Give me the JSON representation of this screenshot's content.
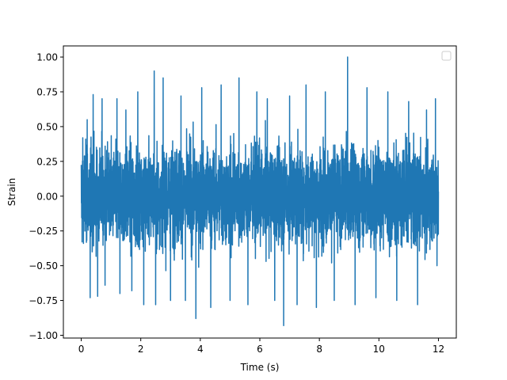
{
  "chart_data": {
    "type": "line",
    "title": "",
    "xlabel": "Time (s)",
    "ylabel": "Strain",
    "xlim": [
      -0.6,
      12.6
    ],
    "ylim": [
      -1.02,
      1.08
    ],
    "x_ticks": [
      0,
      2,
      4,
      6,
      8,
      10,
      12
    ],
    "x_tick_labels": [
      "0",
      "2",
      "4",
      "6",
      "8",
      "10",
      "12"
    ],
    "y_ticks": [
      -1.0,
      -0.75,
      -0.5,
      -0.25,
      0.0,
      0.25,
      0.5,
      0.75,
      1.0
    ],
    "y_tick_labels": [
      "−1.00",
      "−0.75",
      "−0.50",
      "−0.25",
      "0.00",
      "0.25",
      "0.50",
      "0.75",
      "1.00"
    ],
    "grid": false,
    "legend": {
      "placement": "top-right",
      "entries": []
    },
    "series": [
      {
        "color": "#1f77b4",
        "style": "dense noise signal, amplitude mostly within ±0.5",
        "x_range": [
          0,
          12
        ],
        "typical_range": [
          -0.55,
          0.55
        ],
        "max": {
          "x": 8.95,
          "y": 1.0
        },
        "min": {
          "x": 6.8,
          "y": -0.93
        },
        "peaks": [
          {
            "x": 0.05,
            "y": 0.42
          },
          {
            "x": 0.2,
            "y": 0.55
          },
          {
            "x": 0.3,
            "y": -0.73
          },
          {
            "x": 0.4,
            "y": 0.73
          },
          {
            "x": 0.55,
            "y": -0.72
          },
          {
            "x": 0.7,
            "y": 0.7
          },
          {
            "x": 0.8,
            "y": -0.64
          },
          {
            "x": 1.2,
            "y": 0.7
          },
          {
            "x": 1.3,
            "y": -0.7
          },
          {
            "x": 1.5,
            "y": 0.62
          },
          {
            "x": 1.7,
            "y": -0.68
          },
          {
            "x": 1.9,
            "y": 0.75
          },
          {
            "x": 2.1,
            "y": -0.78
          },
          {
            "x": 2.45,
            "y": 0.9
          },
          {
            "x": 2.5,
            "y": -0.78
          },
          {
            "x": 2.75,
            "y": 0.85
          },
          {
            "x": 3.0,
            "y": -0.75
          },
          {
            "x": 3.35,
            "y": 0.72
          },
          {
            "x": 3.5,
            "y": -0.75
          },
          {
            "x": 3.85,
            "y": -0.88
          },
          {
            "x": 4.05,
            "y": 0.78
          },
          {
            "x": 4.35,
            "y": -0.8
          },
          {
            "x": 4.7,
            "y": 0.8
          },
          {
            "x": 5.0,
            "y": -0.75
          },
          {
            "x": 5.3,
            "y": 0.85
          },
          {
            "x": 5.6,
            "y": -0.78
          },
          {
            "x": 5.9,
            "y": 0.75
          },
          {
            "x": 6.25,
            "y": 0.7
          },
          {
            "x": 6.5,
            "y": -0.75
          },
          {
            "x": 6.8,
            "y": -0.93
          },
          {
            "x": 7.0,
            "y": 0.72
          },
          {
            "x": 7.25,
            "y": -0.78
          },
          {
            "x": 7.55,
            "y": 0.8
          },
          {
            "x": 7.9,
            "y": -0.8
          },
          {
            "x": 8.2,
            "y": 0.75
          },
          {
            "x": 8.5,
            "y": -0.75
          },
          {
            "x": 8.95,
            "y": 1.0
          },
          {
            "x": 9.2,
            "y": -0.78
          },
          {
            "x": 9.6,
            "y": 0.78
          },
          {
            "x": 9.9,
            "y": -0.73
          },
          {
            "x": 10.3,
            "y": 0.75
          },
          {
            "x": 10.6,
            "y": -0.75
          },
          {
            "x": 11.0,
            "y": 0.68
          },
          {
            "x": 11.3,
            "y": -0.78
          },
          {
            "x": 11.6,
            "y": 0.62
          },
          {
            "x": 11.9,
            "y": 0.7
          },
          {
            "x": 11.95,
            "y": -0.5
          }
        ]
      }
    ]
  }
}
